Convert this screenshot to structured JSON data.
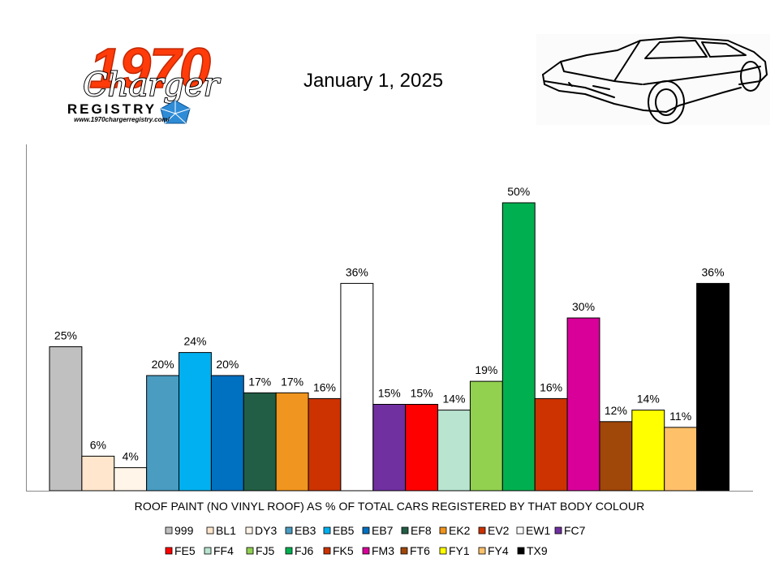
{
  "header": {
    "date": "January 1, 2025",
    "logo": {
      "year": "1970",
      "script": "Charger",
      "registry": "REGISTRY",
      "url": "www.1970chargerregistry.com/"
    },
    "car_illustration": "1970-charger-line-drawing"
  },
  "chart_data": {
    "type": "bar",
    "title": "",
    "xlabel": "ROOF PAINT (NO VINYL ROOF) AS % OF TOTAL CARS REGISTERED BY THAT BODY COLOUR",
    "ylabel": "",
    "ylim": [
      0,
      60
    ],
    "grid": false,
    "legend_position": "bottom",
    "series": [
      {
        "name": "999",
        "value": 25,
        "label": "25%",
        "color": "#C0C0C0"
      },
      {
        "name": "BL1",
        "value": 6,
        "label": "6%",
        "color": "#FFE6CC"
      },
      {
        "name": "DY3",
        "value": 4,
        "label": "4%",
        "color": "#FFF5E8"
      },
      {
        "name": "EB3",
        "value": 20,
        "label": "20%",
        "color": "#4A9CC1"
      },
      {
        "name": "EB5",
        "value": 24,
        "label": "24%",
        "color": "#00B0F0"
      },
      {
        "name": "EB7",
        "value": 20,
        "label": "20%",
        "color": "#0070C0"
      },
      {
        "name": "EF8",
        "value": 17,
        "label": "17%",
        "color": "#225E45"
      },
      {
        "name": "EK2",
        "value": 17,
        "label": "17%",
        "color": "#F0951F"
      },
      {
        "name": "EV2",
        "value": 16,
        "label": "16%",
        "color": "#CC3300"
      },
      {
        "name": "EW1",
        "value": 36,
        "label": "36%",
        "color": "#FFFFFF"
      },
      {
        "name": "FC7",
        "value": 15,
        "label": "15%",
        "color": "#7030A0"
      },
      {
        "name": "FE5",
        "value": 15,
        "label": "15%",
        "color": "#FF0000"
      },
      {
        "name": "FF4",
        "value": 14,
        "label": "14%",
        "color": "#B8E4D0"
      },
      {
        "name": "FJ5",
        "value": 19,
        "label": "19%",
        "color": "#92D050"
      },
      {
        "name": "FJ6",
        "value": 50,
        "label": "50%",
        "color": "#00B050"
      },
      {
        "name": "FK5",
        "value": 16,
        "label": "16%",
        "color": "#CC3300"
      },
      {
        "name": "FM3",
        "value": 30,
        "label": "30%",
        "color": "#D9009A"
      },
      {
        "name": "FT6",
        "value": 12,
        "label": "12%",
        "color": "#A0470A"
      },
      {
        "name": "FY1",
        "value": 14,
        "label": "14%",
        "color": "#FFFF00"
      },
      {
        "name": "FY4",
        "value": 11,
        "label": "11%",
        "color": "#FFC06A"
      },
      {
        "name": "TX9",
        "value": 36,
        "label": "36%",
        "color": "#000000"
      }
    ]
  }
}
